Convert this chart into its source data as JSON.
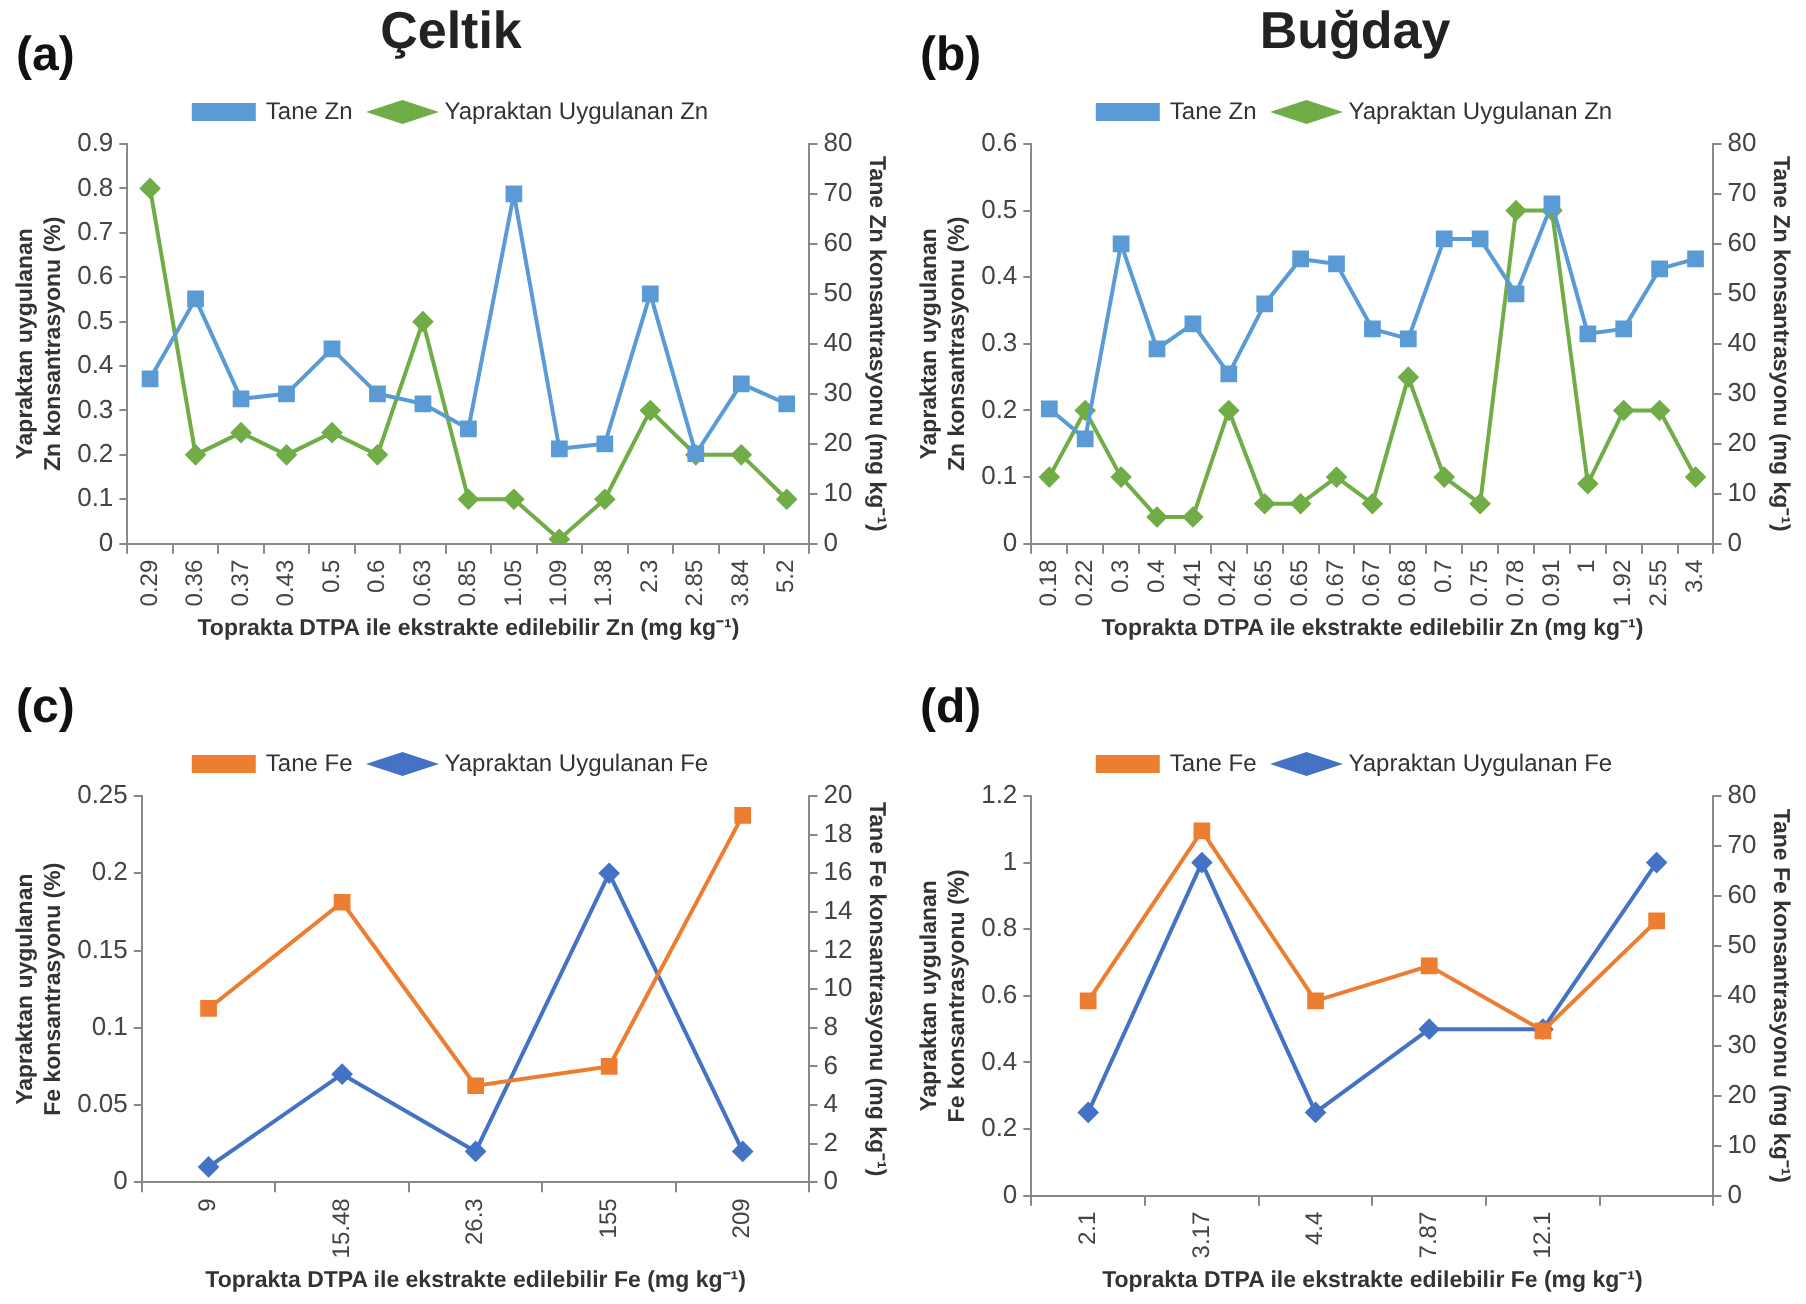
{
  "chart_data": [
    {
      "type": "line",
      "title": "Çeltik",
      "annotations": [
        "(a)"
      ],
      "xlabel": "Toprakta DTPA ile ekstrakte edilebilir Zn (mg kg⁻¹)",
      "ylabel": "Yapraktan uygulanan\nZn konsantrasyonu (%)",
      "y2label": "Tane Zn konsantrasyonu (mg kg⁻¹)",
      "categories": [
        "0.29",
        "0.36",
        "0.37",
        "0.43",
        "0.5",
        "0.6",
        "0.63",
        "0.85",
        "1.05",
        "1.09",
        "1.38",
        "2.3",
        "2.85",
        "3.84",
        "5.2"
      ],
      "series": [
        {
          "name": "Yapraktan Uygulanan Zn",
          "color": "#70ad47",
          "marker": "diamond",
          "values": [
            0.8,
            0.2,
            0.25,
            0.2,
            0.25,
            0.2,
            0.5,
            0.1,
            0.1,
            0.01,
            0.1,
            0.3,
            0.2,
            0.2,
            0.1
          ]
        },
        {
          "name": "Tane Zn",
          "color": "#5b9bd5",
          "marker": "square",
          "axis": "y2",
          "values": [
            33,
            49,
            29,
            30,
            39,
            30,
            28,
            23,
            70,
            19,
            20,
            50,
            18,
            32,
            28
          ]
        }
      ],
      "ylim": [
        0,
        0.9
      ],
      "yticks": [
        0,
        0.1,
        0.2,
        0.3,
        0.4,
        0.5,
        0.6,
        0.7,
        0.8,
        0.9
      ],
      "y2lim": [
        0,
        80
      ],
      "y2ticks": [
        0,
        10,
        20,
        30,
        40,
        50,
        60,
        70,
        80
      ],
      "legend": "top",
      "grid": false
    },
    {
      "type": "line",
      "title": "Buğday",
      "annotations": [
        "(b)"
      ],
      "xlabel": "Toprakta DTPA ile ekstrakte edilebilir Zn (mg kg⁻¹)",
      "ylabel": "Yapraktan uygulanan\nZn konsantrasyonu (%)",
      "y2label": "Tane Zn konsantrasyonu (mg kg⁻¹)",
      "categories": [
        "0.18",
        "0.22",
        "0.3",
        "0.4",
        "0.41",
        "0.42",
        "0.65",
        "0.65",
        "0.67",
        "0.67",
        "0.68",
        "0.7",
        "0.75",
        "0.78",
        "0.91",
        "1",
        "1.92",
        "2.55",
        "3.4"
      ],
      "series": [
        {
          "name": "Yapraktan Uygulanan Zn",
          "color": "#70ad47",
          "marker": "diamond",
          "values": [
            0.1,
            0.2,
            0.1,
            0.04,
            0.04,
            0.2,
            0.06,
            0.06,
            0.1,
            0.06,
            0.25,
            0.1,
            0.06,
            0.5,
            0.5,
            0.09,
            0.2,
            0.2,
            0.1
          ]
        },
        {
          "name": "Tane Zn",
          "color": "#5b9bd5",
          "marker": "square",
          "axis": "y2",
          "values": [
            27,
            21,
            60,
            39,
            44,
            34,
            48,
            57,
            56,
            43,
            41,
            61,
            61,
            50,
            68,
            42,
            43,
            55,
            57
          ]
        }
      ],
      "ylim": [
        0,
        0.6
      ],
      "yticks": [
        0,
        0.1,
        0.2,
        0.3,
        0.4,
        0.5,
        0.6
      ],
      "y2lim": [
        0,
        80
      ],
      "y2ticks": [
        0,
        10,
        20,
        30,
        40,
        50,
        60,
        70,
        80
      ],
      "legend": "top",
      "grid": false
    },
    {
      "type": "line",
      "annotations": [
        "(c)"
      ],
      "xlabel": "Toprakta DTPA ile ekstrakte edilebilir Fe (mg kg⁻¹)",
      "ylabel": "Yapraktan uygulanan\nFe konsantrasyonu (%)",
      "y2label": "Tane Fe konsantrasyonu (mg kg⁻¹)",
      "categories": [
        "9",
        "15.48",
        "26.3",
        "155",
        "209"
      ],
      "series": [
        {
          "name": "Yapraktan Uygulanan Fe",
          "color": "#4472c4",
          "marker": "diamond",
          "values": [
            0.01,
            0.07,
            0.02,
            0.2,
            0.02
          ]
        },
        {
          "name": "Tane Fe",
          "color": "#ed7d31",
          "marker": "square",
          "axis": "y2",
          "values": [
            9,
            14.5,
            5,
            6,
            19
          ]
        }
      ],
      "ylim": [
        0,
        0.25
      ],
      "yticks": [
        0,
        0.05,
        0.1,
        0.15,
        0.2,
        0.25
      ],
      "y2lim": [
        0,
        20
      ],
      "y2ticks": [
        0,
        2,
        4,
        6,
        8,
        10,
        12,
        14,
        16,
        18,
        20
      ],
      "legend": "top",
      "grid": false
    },
    {
      "type": "line",
      "annotations": [
        "(d)"
      ],
      "xlabel": "Toprakta DTPA ile ekstrakte edilebilir Fe (mg kg⁻¹)",
      "ylabel": "Yapraktan uygulanan\nFe konsantrasyonu (%)",
      "y2label": "Tane Fe konsantrasyonu (mg kg⁻¹)",
      "categories": [
        "2.1",
        "3.17",
        "4.4",
        "7.87",
        "12.1",
        null
      ],
      "series": [
        {
          "name": "Yapraktan Uygulanan Fe",
          "color": "#4472c4",
          "marker": "diamond",
          "values": [
            0.25,
            1,
            0.25,
            0.5,
            0.5,
            1
          ]
        },
        {
          "name": "Tane Fe",
          "color": "#ed7d31",
          "marker": "square",
          "axis": "y2",
          "values": [
            39,
            73,
            39,
            46,
            33,
            55
          ]
        }
      ],
      "ylim": [
        0,
        1.2
      ],
      "yticks": [
        0,
        0.2,
        0.4,
        0.6,
        0.8,
        1,
        1.2
      ],
      "y2lim": [
        0,
        80
      ],
      "y2ticks": [
        0,
        10,
        20,
        30,
        40,
        50,
        60,
        70,
        80
      ],
      "legend": "top",
      "grid": false
    }
  ]
}
